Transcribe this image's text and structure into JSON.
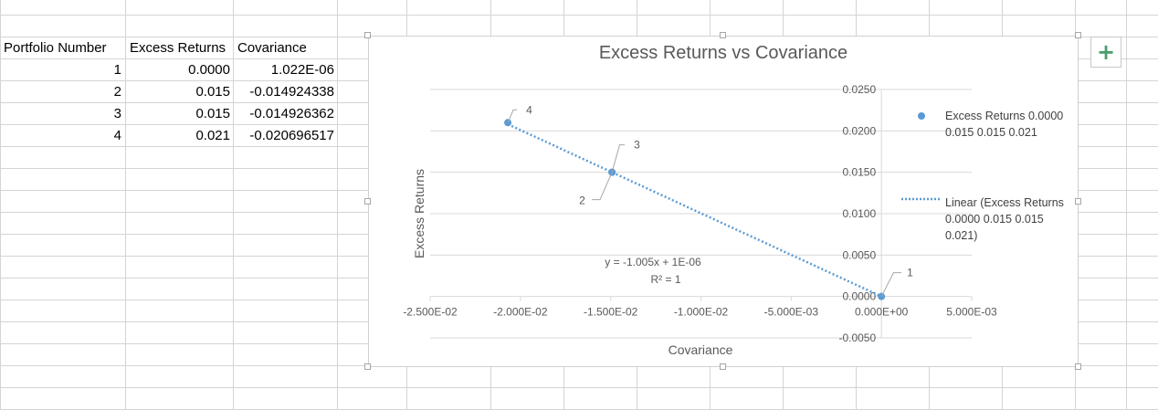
{
  "sheet": {
    "headers": [
      "Portfolio Number",
      "Excess Returns",
      "Covariance"
    ],
    "rows": [
      [
        "1",
        "0.0000",
        "1.022E-06"
      ],
      [
        "2",
        "0.015",
        "-0.014924338"
      ],
      [
        "3",
        "0.015",
        "-0.014926362"
      ],
      [
        "4",
        "0.021",
        "-0.020696517"
      ]
    ]
  },
  "chart": {
    "title": "Excess Returns vs Covariance",
    "xlabel": "Covariance",
    "ylabel": "Excess Returns",
    "x_ticks": [
      "-2.500E-02",
      "-2.000E-02",
      "-1.500E-02",
      "-1.000E-02",
      "-5.000E-03",
      "0.000E+00",
      "5.000E-03"
    ],
    "y_ticks": [
      "0.0250",
      "0.0200",
      "0.0150",
      "0.0100",
      "0.0050",
      "0.0000",
      "-0.0050"
    ],
    "legend_series": "Excess Returns 0.0000 0.015 0.015 0.021",
    "legend_trend": "Linear (Excess Returns 0.0000 0.015 0.015 0.021)",
    "equation": "y = -1.005x + 1E-06",
    "r_squared": "R² = 1",
    "point_labels": [
      "1",
      "2",
      "3",
      "4"
    ],
    "add_element_button": "+"
  },
  "chart_data": {
    "type": "scatter",
    "title": "Excess Returns vs Covariance",
    "xlabel": "Covariance",
    "ylabel": "Excess Returns",
    "xlim": [
      -0.025,
      0.005
    ],
    "ylim": [
      -0.005,
      0.025
    ],
    "series": [
      {
        "name": "Excess Returns 0.0000 0.015 0.015 0.021",
        "x": [
          1.022e-06,
          -0.014924338,
          -0.014926362,
          -0.020696517
        ],
        "y": [
          0.0,
          0.015,
          0.015,
          0.021
        ],
        "labels": [
          "1",
          "2",
          "3",
          "4"
        ],
        "color": "#5b9bd5"
      }
    ],
    "trendline": {
      "type": "linear",
      "slope": -1.005,
      "intercept": 1e-06,
      "color": "#5b9bd5"
    },
    "grid": true,
    "legend": "right"
  },
  "colors": {
    "gridline": "#d9d9d9",
    "series": "#5b9bd5",
    "plus": "#4a9c6d"
  }
}
